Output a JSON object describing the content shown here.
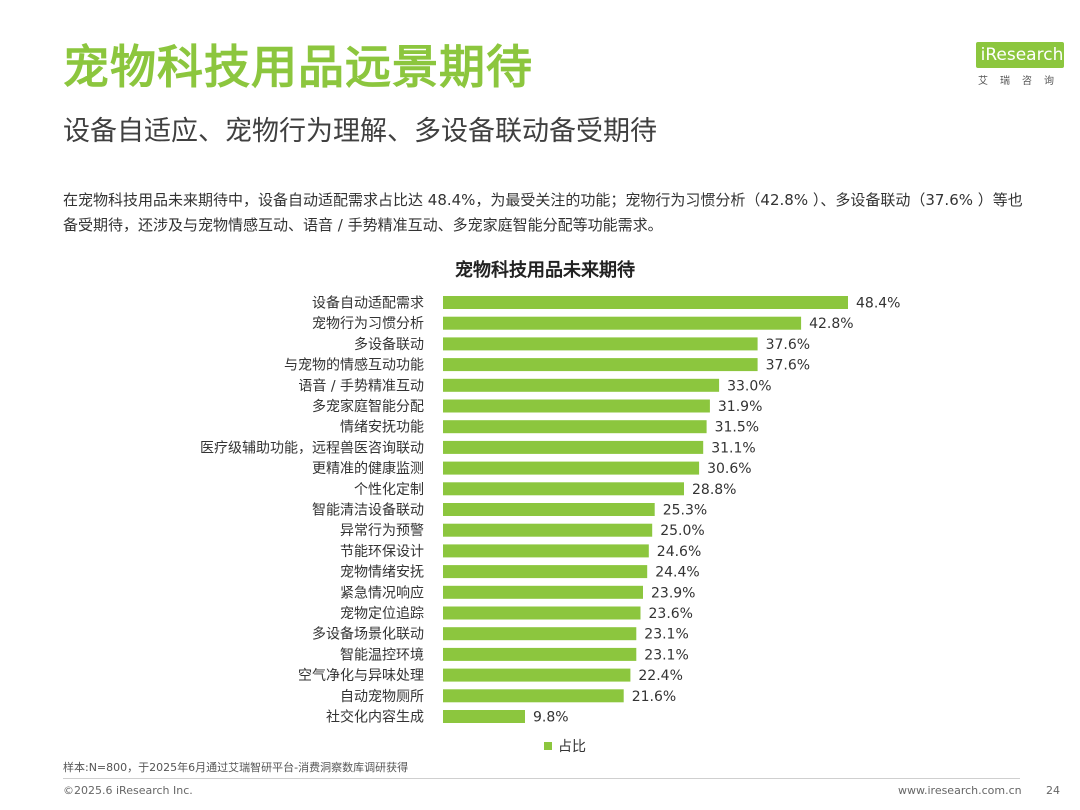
{
  "header": {
    "title": "宠物科技用品远景期待",
    "subtitle": "设备自适应、宠物行为理解、多设备联动备受期待",
    "logo_text": "iResearch",
    "logo_cn": "艾瑞咨询"
  },
  "description": "在宠物科技用品未来期待中，设备自动适配需求占比达 48.4%，为最受关注的功能；宠物行为习惯分析（42.8% ）、多设备联动（37.6% ）等也备受期待，还涉及与宠物情感互动、语音 / 手势精准互动、多宠家庭智能分配等功能需求。",
  "chart_data": {
    "type": "bar",
    "orientation": "horizontal",
    "title": "宠物科技用品未来期待",
    "categories": [
      "设备自动适配需求",
      "宠物行为习惯分析",
      "多设备联动",
      "与宠物的情感互动功能",
      "语音 / 手势精准互动",
      "多宠家庭智能分配",
      "情绪安抚功能",
      "医疗级辅助功能，远程兽医咨询联动",
      "更精准的健康监测",
      "个性化定制",
      "智能清洁设备联动",
      "异常行为预警",
      "节能环保设计",
      "宠物情绪安抚",
      "紧急情况响应",
      "宠物定位追踪",
      "多设备场景化联动",
      "智能温控环境",
      "空气净化与异味处理",
      "自动宠物厕所",
      "社交化内容生成"
    ],
    "series": [
      {
        "name": "占比",
        "values": [
          48.4,
          42.8,
          37.6,
          37.6,
          33.0,
          31.9,
          31.5,
          31.1,
          30.6,
          28.8,
          25.3,
          25.0,
          24.6,
          24.4,
          23.9,
          23.6,
          23.1,
          23.1,
          22.4,
          21.6,
          9.8
        ],
        "labels": [
          "48.4%",
          "42.8%",
          "37.6%",
          "37.6%",
          "33.0%",
          "31.9%",
          "31.5%",
          "31.1%",
          "30.6%",
          "28.8%",
          "25.3%",
          "25.0%",
          "24.6%",
          "24.4%",
          "23.9%",
          "23.6%",
          "23.1%",
          "23.1%",
          "22.4%",
          "21.6%",
          "9.8%"
        ],
        "color": "#8cc63e"
      }
    ],
    "xlim": [
      0,
      50
    ],
    "grid": false,
    "legend": "bottom"
  },
  "footer": {
    "note": "样本:N=800，于2025年6月通过艾瑞智研平台-消费洞察数库调研获得",
    "copyright": "©2025.6 iResearch Inc.",
    "website": "www.iresearch.com.cn",
    "page": "24"
  }
}
